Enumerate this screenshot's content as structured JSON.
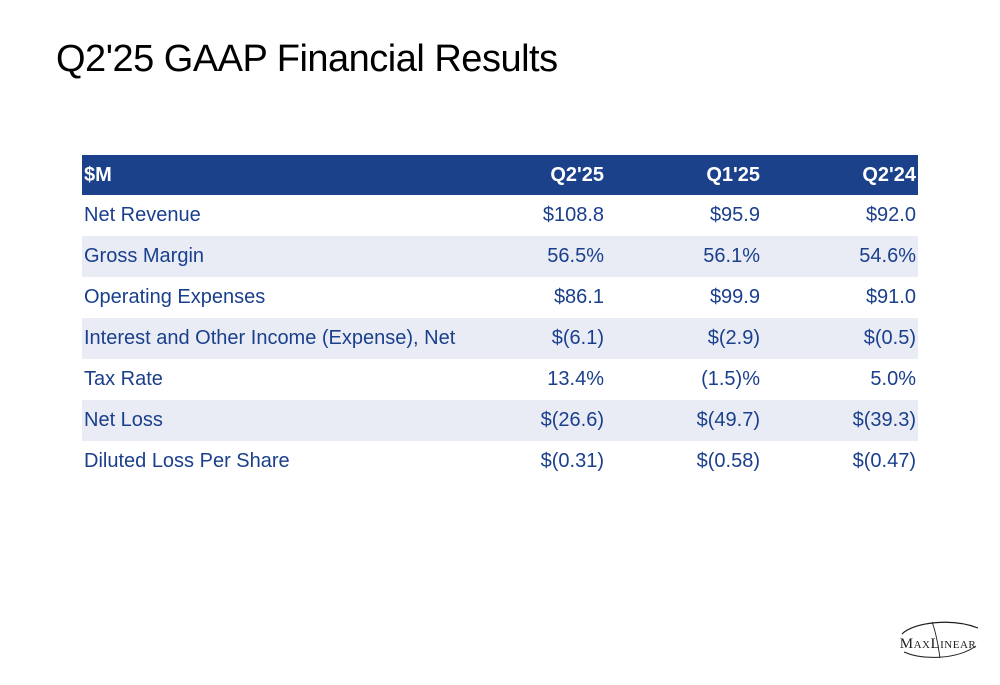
{
  "title": "Q2'25 GAAP Financial Results",
  "table": {
    "headers": [
      "$M",
      "Q2'25",
      "Q1'25",
      "Q2'24"
    ],
    "rows": [
      [
        "Net Revenue",
        "$108.8",
        "$95.9",
        "$92.0"
      ],
      [
        "Gross Margin",
        "56.5%",
        "56.1%",
        "54.6%"
      ],
      [
        "Operating Expenses",
        "$86.1",
        "$99.9",
        "$91.0"
      ],
      [
        "Interest and Other Income (Expense), Net",
        "$(6.1)",
        "$(2.9)",
        "$(0.5)"
      ],
      [
        "Tax Rate",
        "13.4%",
        "(1.5)%",
        "5.0%"
      ],
      [
        "Net Loss",
        "$(26.6)",
        "$(49.7)",
        "$(39.3)"
      ],
      [
        "Diluted Loss Per Share",
        "$(0.31)",
        "$(0.58)",
        "$(0.47)"
      ]
    ]
  },
  "logo": {
    "text": "MaxLinear"
  },
  "colors": {
    "header_bg": "#1a4189",
    "header_text": "#ffffff",
    "row_text": "#1a3f8c",
    "band_bg": "#e9ecf5"
  }
}
